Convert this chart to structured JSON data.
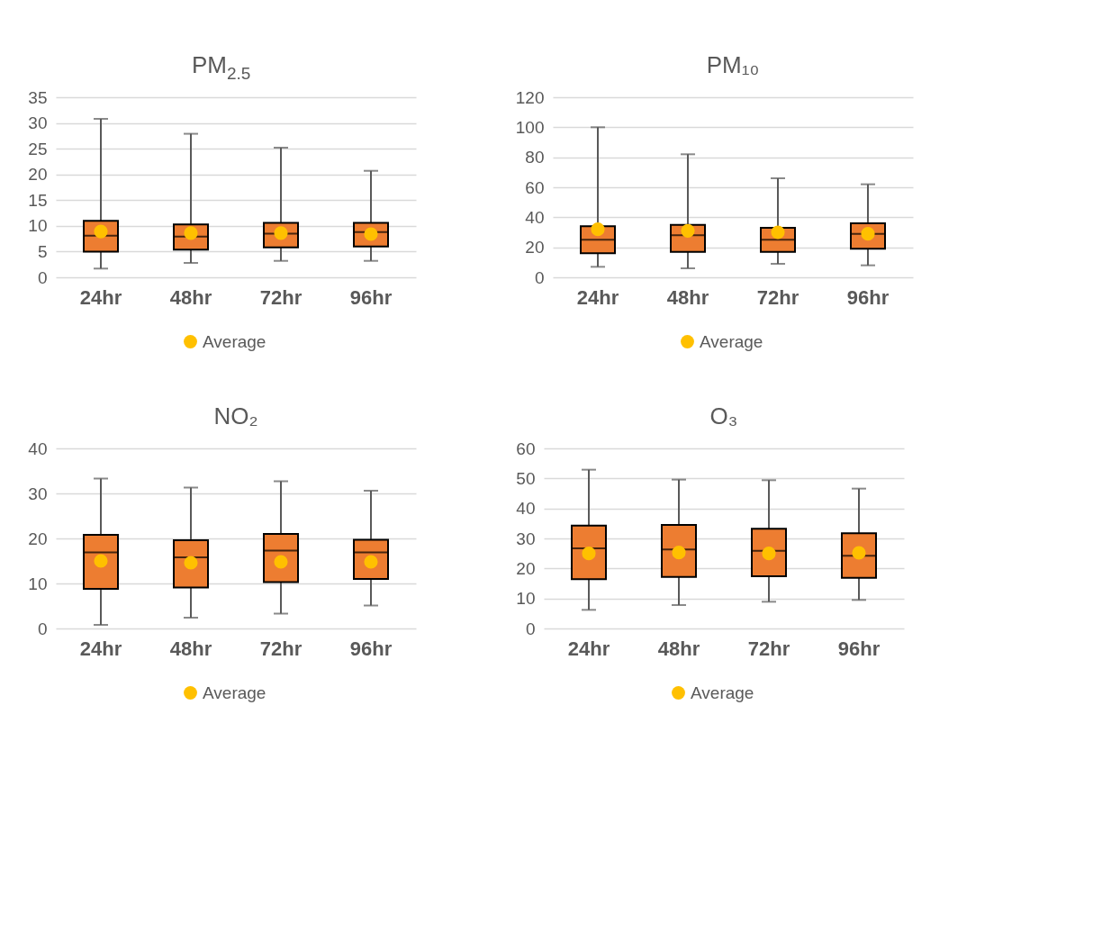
{
  "chart_data": [
    {
      "type": "box",
      "title": "PM$_{2.5}$",
      "categories": [
        "24hr",
        "48hr",
        "72hr",
        "96hr"
      ],
      "ylim": [
        0,
        35
      ],
      "yticks": [
        0,
        5,
        10,
        15,
        20,
        25,
        30,
        35
      ],
      "grid": "y",
      "legend": "bottom",
      "series": [
        {
          "color": "#ed7d31",
          "boxes": [
            {
              "low": 1.7,
              "q1": 5.0,
              "median": 8.1,
              "q3": 11.0,
              "high": 30.8
            },
            {
              "low": 2.8,
              "q1": 5.4,
              "median": 7.9,
              "q3": 10.3,
              "high": 27.9
            },
            {
              "low": 3.2,
              "q1": 5.8,
              "median": 8.5,
              "q3": 10.6,
              "high": 25.2
            },
            {
              "low": 3.2,
              "q1": 6.0,
              "median": 8.8,
              "q3": 10.6,
              "high": 20.7
            }
          ]
        },
        {
          "type": "scatter",
          "name": "Average",
          "color": "#ffc000",
          "x": [
            "24hr",
            "48hr",
            "72hr",
            "96hr"
          ],
          "values": [
            8.9,
            8.6,
            8.6,
            8.4
          ]
        }
      ]
    },
    {
      "type": "box",
      "title": "PM₁₀",
      "categories": [
        "24hr",
        "48hr",
        "72hr",
        "96hr"
      ],
      "ylim": [
        0,
        120
      ],
      "yticks": [
        0,
        20,
        40,
        60,
        80,
        100,
        120
      ],
      "grid": "y",
      "legend": "bottom",
      "series": [
        {
          "color": "#ed7d31",
          "boxes": [
            {
              "low": 7,
              "q1": 16,
              "median": 25,
              "q3": 34,
              "high": 100
            },
            {
              "low": 6,
              "q1": 17,
              "median": 28,
              "q3": 35,
              "high": 82
            },
            {
              "low": 9,
              "q1": 17,
              "median": 25,
              "q3": 33,
              "high": 66
            },
            {
              "low": 8,
              "q1": 19,
              "median": 29,
              "q3": 36,
              "high": 62
            }
          ]
        },
        {
          "type": "scatter",
          "name": "Average",
          "color": "#ffc000",
          "x": [
            "24hr",
            "48hr",
            "72hr",
            "96hr"
          ],
          "values": [
            32,
            31,
            30,
            29
          ]
        }
      ]
    },
    {
      "type": "box",
      "title": "NO₂",
      "categories": [
        "24hr",
        "48hr",
        "72hr",
        "96hr"
      ],
      "ylim": [
        0,
        40
      ],
      "yticks": [
        0,
        10,
        20,
        30,
        40
      ],
      "grid": "y",
      "legend": "bottom",
      "series": [
        {
          "color": "#ed7d31",
          "boxes": [
            {
              "low": 0.8,
              "q1": 8.8,
              "median": 16.9,
              "q3": 20.8,
              "high": 33.3
            },
            {
              "low": 2.4,
              "q1": 9.1,
              "median": 15.8,
              "q3": 19.6,
              "high": 31.3
            },
            {
              "low": 3.3,
              "q1": 10.3,
              "median": 17.3,
              "q3": 21.0,
              "high": 32.7
            },
            {
              "low": 5.1,
              "q1": 11.0,
              "median": 16.9,
              "q3": 19.7,
              "high": 30.6
            }
          ]
        },
        {
          "type": "scatter",
          "name": "Average",
          "color": "#ffc000",
          "x": [
            "24hr",
            "48hr",
            "72hr",
            "96hr"
          ],
          "values": [
            15.0,
            14.6,
            14.8,
            14.8
          ]
        }
      ]
    },
    {
      "type": "box",
      "title": "O₃",
      "categories": [
        "24hr",
        "48hr",
        "72hr",
        "96hr"
      ],
      "ylim": [
        0,
        60
      ],
      "yticks": [
        0,
        10,
        20,
        30,
        40,
        50,
        60
      ],
      "grid": "y",
      "legend": "bottom",
      "series": [
        {
          "color": "#ed7d31",
          "boxes": [
            {
              "low": 6.2,
              "q1": 16.4,
              "median": 26.7,
              "q3": 34.3,
              "high": 52.9
            },
            {
              "low": 7.8,
              "q1": 17.2,
              "median": 26.3,
              "q3": 34.5,
              "high": 49.6
            },
            {
              "low": 8.9,
              "q1": 17.4,
              "median": 25.9,
              "q3": 33.2,
              "high": 49.4
            },
            {
              "low": 9.5,
              "q1": 16.9,
              "median": 24.2,
              "q3": 31.7,
              "high": 46.6
            }
          ]
        },
        {
          "type": "scatter",
          "name": "Average",
          "color": "#ffc000",
          "x": [
            "24hr",
            "48hr",
            "72hr",
            "96hr"
          ],
          "values": [
            25.0,
            25.3,
            25.0,
            25.2
          ]
        }
      ]
    }
  ]
}
